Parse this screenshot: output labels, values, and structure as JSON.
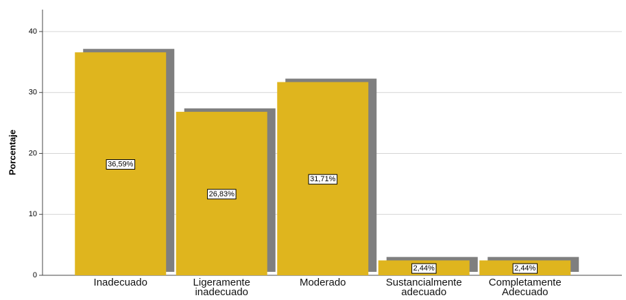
{
  "chart_data": {
    "type": "bar",
    "y_label": "Porcentaje",
    "categories": [
      "Inadecuado",
      "Ligeramente\ninadecuado",
      "Moderado",
      "Sustancialmente\nadecuado",
      "Completamente\nAdecuado"
    ],
    "values": [
      36.59,
      26.83,
      31.71,
      2.44,
      2.44
    ],
    "value_labels": [
      "36,59%",
      "26,83%",
      "31,71%",
      "2,44%",
      "2,44%"
    ],
    "color": "#dfb51e",
    "shadow_color": "#7f7f7f",
    "ylim": [
      0,
      43.6
    ],
    "yticks": [
      0,
      10,
      20,
      30,
      40
    ],
    "grid": true
  }
}
